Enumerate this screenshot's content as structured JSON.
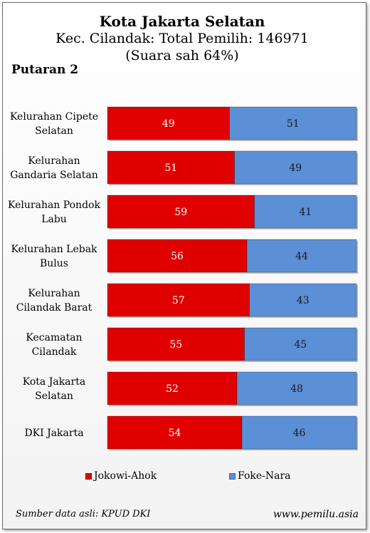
{
  "header": {
    "title": "Kota Jakarta Selatan",
    "subtitle": "Kec. Cilandak: Total Pemilih: 146971",
    "subtitle2": "(Suara sah 64%)",
    "round": "Putaran 2"
  },
  "colors": {
    "jokowi": "#e00000",
    "foke": "#5b8fd6"
  },
  "legend": {
    "jokowi": "Jokowi-Ahok",
    "foke": "Foke-Nara"
  },
  "footer": {
    "source": "Sumber data asli: KPUD DKI",
    "site": "www.pemilu.asia"
  },
  "chart_data": {
    "type": "bar",
    "orientation": "horizontal",
    "stacked": "100%",
    "categories": [
      [
        "Kelurahan Cipete",
        "Selatan"
      ],
      [
        "Kelurahan",
        "Gandaria Selatan"
      ],
      [
        "Kelurahan Pondok",
        "Labu"
      ],
      [
        "Kelurahan Lebak",
        "Bulus"
      ],
      [
        "Kelurahan",
        "Cilandak Barat"
      ],
      [
        "Kecamatan",
        "Cilandak"
      ],
      [
        "Kota Jakarta",
        "Selatan"
      ],
      [
        "DKI Jakarta"
      ]
    ],
    "series": [
      {
        "name": "Jokowi-Ahok",
        "values": [
          49,
          51,
          59,
          56,
          57,
          55,
          52,
          54
        ]
      },
      {
        "name": "Foke-Nara",
        "values": [
          51,
          49,
          41,
          44,
          43,
          45,
          48,
          46
        ]
      }
    ],
    "xlim": [
      0,
      100
    ],
    "legend_position": "bottom",
    "grid": false
  }
}
